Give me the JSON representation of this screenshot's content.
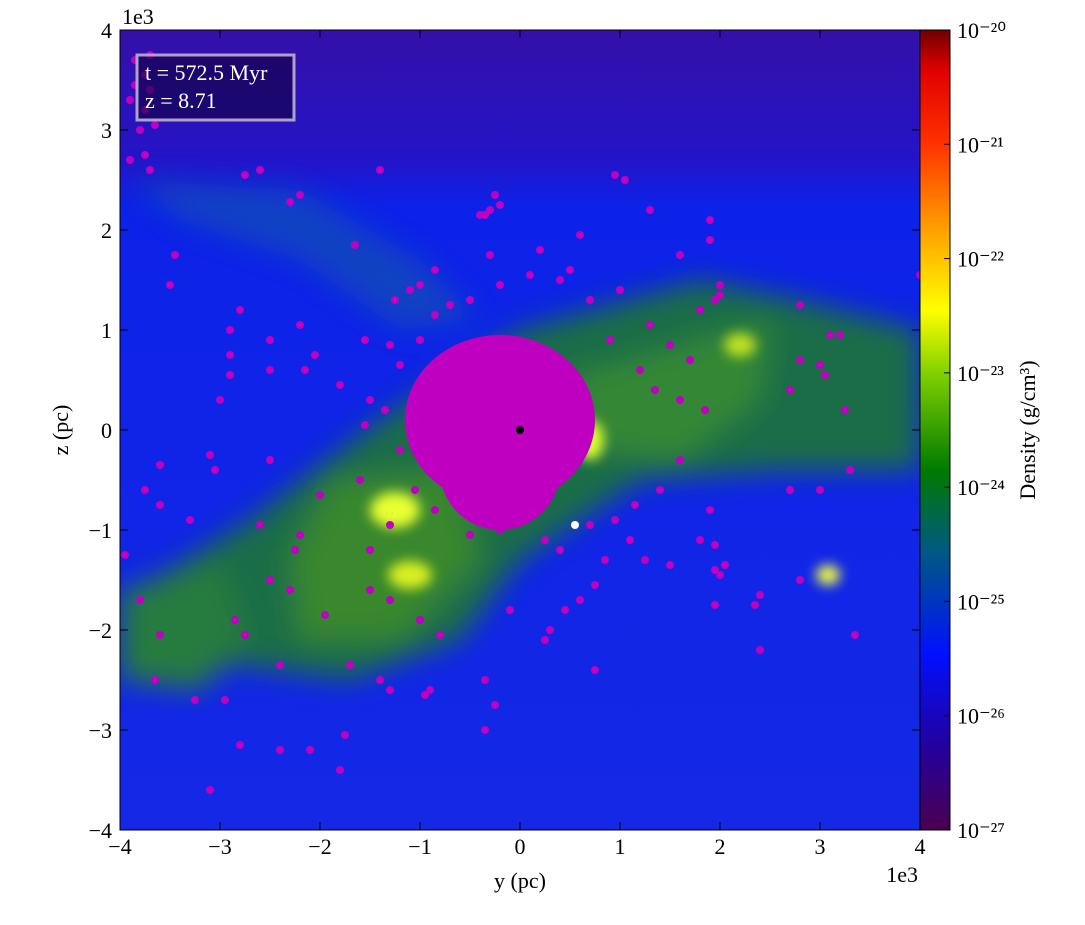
{
  "chart_data": {
    "type": "scatter",
    "xlabel": "y  (pc)",
    "ylabel": "z  (pc)",
    "x_offset_label": "1e3",
    "y_offset_label": "1e3",
    "annotations": [
      "t = 572.5 Myr",
      "z = 8.71"
    ],
    "xlim": [
      -4,
      4
    ],
    "ylim": [
      -4,
      4
    ],
    "xticks": [
      {
        "value": -4,
        "label": "−4"
      },
      {
        "value": -3,
        "label": "−3"
      },
      {
        "value": -2,
        "label": "−2"
      },
      {
        "value": -1,
        "label": "−1"
      },
      0,
      1,
      2,
      3,
      4
    ],
    "yticks": [
      {
        "value": -4,
        "label": "−4"
      },
      {
        "value": -3,
        "label": "−3"
      },
      {
        "value": -2,
        "label": "−2"
      },
      {
        "value": -1,
        "label": "−1"
      },
      0,
      1,
      2,
      3,
      4
    ],
    "colorbar": {
      "label": "Density  (g/cm³)",
      "log": true,
      "lim": [
        1e-27,
        1e-20
      ],
      "ticks": [
        {
          "value": 1e-27,
          "label": "10⁻²⁷"
        },
        {
          "value": 1e-26,
          "label": "10⁻²⁶"
        },
        {
          "value": 1e-25,
          "label": "10⁻²⁵"
        },
        {
          "value": 1e-24,
          "label": "10⁻²⁴"
        },
        {
          "value": 1e-23,
          "label": "10⁻²³"
        },
        {
          "value": 1e-22,
          "label": "10⁻²²"
        },
        {
          "value": 1e-21,
          "label": "10⁻²¹"
        },
        {
          "value": 1e-20,
          "label": "10⁻²⁰"
        }
      ]
    },
    "series": [
      {
        "color": "#c000c0",
        "x": [
          -3.9,
          -3.85,
          -3.75,
          -3.7,
          -3.8,
          -3.65,
          -3.9,
          -3.75,
          -3.7,
          -3.85,
          -3.7,
          -3.75,
          -2.6,
          -2.75,
          -1.4,
          -2.3,
          -2.2,
          -1.65,
          -0.85,
          -3.45,
          -3.5,
          -0.25,
          -0.3,
          -0.35,
          -0.2,
          -0.4,
          0.95,
          1.05,
          1.9,
          0.6,
          1.3,
          1.9,
          1.6,
          2.0,
          2.0,
          2.8,
          3.1,
          3.2,
          4.0,
          2.8,
          3.0,
          3.25,
          3.05,
          2.7,
          3.3,
          2.7,
          3.0,
          1.9,
          1.8,
          1.95,
          2.0,
          2.05,
          1.95,
          2.4,
          2.35,
          1.95,
          2.4,
          3.35,
          2.8,
          1.5,
          0.75,
          0.6,
          0.45,
          0.3,
          0.25,
          0.75,
          -0.1,
          -0.35,
          -0.9,
          -0.95,
          -0.35,
          -0.25,
          -1.3,
          -1.75,
          -1.8,
          -2.1,
          -2.4,
          -2.8,
          -3.1,
          -2.95,
          -3.25,
          -3.6,
          -3.65,
          -3.8,
          -3.95,
          -3.6,
          -3.75,
          -3.6,
          -3.1,
          -3.05,
          -2.5,
          -2.0,
          -2.2,
          -2.25,
          -2.5,
          -2.3,
          -1.95,
          -1.5,
          -1.3,
          -1.0,
          -0.8,
          -1.4,
          -1.7,
          -2.4,
          -2.75,
          -2.85,
          -2.6,
          -3.3,
          -3.0,
          -2.9,
          -2.5,
          -2.5,
          -2.2,
          -2.05,
          -2.15,
          -2.9,
          -2.9,
          -2.8,
          -1.8,
          -1.5,
          -1.2,
          -1.55,
          -1.25,
          -1.1,
          -1.0,
          -0.85,
          -0.7,
          -1.3,
          -1.0,
          1.3,
          1.5,
          1.8,
          1.95,
          1.7,
          1.6,
          1.85,
          1.6,
          1.4,
          1.15,
          1.1,
          0.95,
          0.85,
          1.25,
          0.7,
          0.4,
          0.25,
          -0.2,
          -0.5,
          -0.85,
          -1.05,
          -1.3,
          -1.5,
          -1.6,
          -1.2,
          -1.55,
          -1.35,
          1.2,
          1.35,
          0.9,
          0.7,
          0.4,
          0.1,
          -0.2,
          -0.5,
          -0.3,
          0.2,
          0.5,
          1.0
        ],
        "y": [
          3.3,
          3.45,
          3.2,
          3.4,
          3.0,
          3.05,
          2.7,
          2.75,
          2.6,
          3.7,
          3.75,
          3.55,
          2.6,
          2.55,
          2.6,
          2.28,
          2.35,
          1.85,
          1.6,
          1.75,
          1.45,
          2.35,
          2.2,
          2.15,
          2.25,
          2.15,
          2.55,
          2.5,
          2.1,
          1.95,
          2.2,
          1.9,
          1.75,
          1.45,
          1.35,
          1.25,
          0.95,
          0.95,
          1.55,
          0.7,
          0.65,
          0.2,
          0.55,
          0.4,
          -0.4,
          -0.6,
          -0.6,
          -0.8,
          -1.1,
          -1.15,
          -1.45,
          -1.35,
          -1.4,
          -1.65,
          -1.75,
          -1.75,
          -2.2,
          -2.05,
          -1.5,
          -1.35,
          -1.55,
          -1.7,
          -1.8,
          -2.0,
          -2.1,
          -2.4,
          -1.8,
          -2.5,
          -2.6,
          -2.65,
          -3.0,
          -2.75,
          -2.6,
          -3.05,
          -3.4,
          -3.2,
          -3.2,
          -3.15,
          -3.6,
          -2.7,
          -2.7,
          -2.05,
          -2.5,
          -1.7,
          -1.25,
          -0.75,
          -0.6,
          -0.35,
          -0.25,
          -0.4,
          -0.3,
          -0.65,
          -1.05,
          -1.2,
          -1.5,
          -1.6,
          -1.85,
          -1.6,
          -1.7,
          -1.9,
          -2.05,
          -2.5,
          -2.35,
          -2.35,
          -2.05,
          -1.9,
          -0.95,
          -0.9,
          0.3,
          0.55,
          0.6,
          0.9,
          1.05,
          0.75,
          0.6,
          0.75,
          1.0,
          1.2,
          0.45,
          0.3,
          0.65,
          0.9,
          1.3,
          1.4,
          1.45,
          1.15,
          1.25,
          0.85,
          0.9,
          1.05,
          0.85,
          1.2,
          1.3,
          0.7,
          0.3,
          0.2,
          -0.3,
          -0.6,
          -0.75,
          -1.1,
          -0.9,
          -1.3,
          -1.3,
          -0.95,
          -1.2,
          -1.1,
          -1.0,
          -1.05,
          -0.8,
          -0.6,
          -0.95,
          -1.2,
          -0.5,
          -0.2,
          0.05,
          0.2,
          0.6,
          0.4,
          0.9,
          1.3,
          1.5,
          1.55,
          1.45,
          1.3,
          1.75,
          1.8,
          1.6,
          1.4
        ]
      },
      {
        "color": "#000000",
        "x": [
          0
        ],
        "y": [
          0
        ]
      },
      {
        "color": "#ffffff",
        "x": [
          0.55
        ],
        "y": [
          -0.95
        ]
      }
    ]
  }
}
